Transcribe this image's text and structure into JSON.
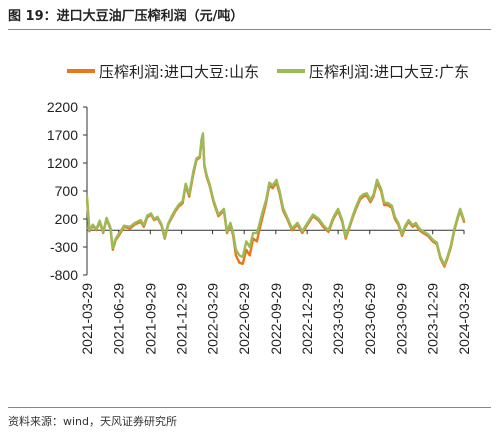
{
  "header": {
    "title": "图 19：进口大豆油厂压榨利润（元/吨）"
  },
  "footer": {
    "source": "资料来源：wind，天风证券研究所"
  },
  "colors": {
    "shandong": "#E8761A",
    "guangdong": "#9BBB59",
    "axis": "#333333",
    "text": "#222222"
  },
  "chart_data": {
    "type": "line",
    "title": "",
    "xlabel": "",
    "ylabel": "",
    "ylim": [
      -800,
      2200
    ],
    "yticks": [
      2200,
      1700,
      1200,
      700,
      200,
      -300,
      -800
    ],
    "xlim": [
      "2021-03-29",
      "2024-03-29"
    ],
    "xticks": [
      "2021-03-29",
      "2021-06-29",
      "2021-09-29",
      "2021-12-29",
      "2022-03-29",
      "2022-06-29",
      "2022-09-29",
      "2022-12-29",
      "2023-03-29",
      "2023-06-29",
      "2023-09-29",
      "2023-12-29",
      "2024-03-29"
    ],
    "legend": "top",
    "grid": false,
    "series": [
      {
        "name": "压榨利润:进口大豆:山东",
        "color": "#E8761A",
        "points": [
          [
            "2021-03-29",
            550
          ],
          [
            "2021-04-05",
            -20
          ],
          [
            "2021-04-15",
            80
          ],
          [
            "2021-04-25",
            0
          ],
          [
            "2021-05-05",
            150
          ],
          [
            "2021-05-15",
            -50
          ],
          [
            "2021-05-25",
            200
          ],
          [
            "2021-06-05",
            30
          ],
          [
            "2021-06-12",
            -350
          ],
          [
            "2021-06-20",
            -180
          ],
          [
            "2021-07-01",
            -80
          ],
          [
            "2021-07-15",
            60
          ],
          [
            "2021-08-01",
            30
          ],
          [
            "2021-08-15",
            100
          ],
          [
            "2021-09-01",
            150
          ],
          [
            "2021-09-10",
            60
          ],
          [
            "2021-09-20",
            230
          ],
          [
            "2021-10-01",
            280
          ],
          [
            "2021-10-10",
            180
          ],
          [
            "2021-10-20",
            220
          ],
          [
            "2021-11-01",
            80
          ],
          [
            "2021-11-10",
            -150
          ],
          [
            "2021-11-20",
            100
          ],
          [
            "2021-12-01",
            230
          ],
          [
            "2021-12-10",
            330
          ],
          [
            "2021-12-20",
            420
          ],
          [
            "2022-01-01",
            480
          ],
          [
            "2022-01-10",
            800
          ],
          [
            "2022-01-20",
            600
          ],
          [
            "2022-02-01",
            1000
          ],
          [
            "2022-02-10",
            1250
          ],
          [
            "2022-02-20",
            1300
          ],
          [
            "2022-02-25",
            1580
          ],
          [
            "2022-03-01",
            1700
          ],
          [
            "2022-03-05",
            1150
          ],
          [
            "2022-03-12",
            950
          ],
          [
            "2022-03-20",
            800
          ],
          [
            "2022-04-01",
            500
          ],
          [
            "2022-04-15",
            250
          ],
          [
            "2022-05-01",
            350
          ],
          [
            "2022-05-10",
            -50
          ],
          [
            "2022-05-20",
            100
          ],
          [
            "2022-05-28",
            -100
          ],
          [
            "2022-06-05",
            -450
          ],
          [
            "2022-06-15",
            -580
          ],
          [
            "2022-06-25",
            -600
          ],
          [
            "2022-07-05",
            -350
          ],
          [
            "2022-07-15",
            -450
          ],
          [
            "2022-07-25",
            -150
          ],
          [
            "2022-08-05",
            -200
          ],
          [
            "2022-08-12",
            0
          ],
          [
            "2022-08-20",
            200
          ],
          [
            "2022-09-01",
            500
          ],
          [
            "2022-09-10",
            800
          ],
          [
            "2022-09-20",
            750
          ],
          [
            "2022-10-01",
            850
          ],
          [
            "2022-10-10",
            650
          ],
          [
            "2022-10-20",
            350
          ],
          [
            "2022-11-01",
            200
          ],
          [
            "2022-11-15",
            0
          ],
          [
            "2022-12-01",
            100
          ],
          [
            "2022-12-15",
            -50
          ],
          [
            "2023-01-01",
            120
          ],
          [
            "2023-01-15",
            250
          ],
          [
            "2023-02-01",
            170
          ],
          [
            "2023-02-15",
            50
          ],
          [
            "2023-03-01",
            -30
          ],
          [
            "2023-03-15",
            200
          ],
          [
            "2023-03-29",
            350
          ],
          [
            "2023-04-10",
            150
          ],
          [
            "2023-04-20",
            -150
          ],
          [
            "2023-05-01",
            50
          ],
          [
            "2023-05-10",
            220
          ],
          [
            "2023-05-20",
            380
          ],
          [
            "2023-06-01",
            550
          ],
          [
            "2023-06-10",
            600
          ],
          [
            "2023-06-20",
            620
          ],
          [
            "2023-07-01",
            500
          ],
          [
            "2023-07-10",
            600
          ],
          [
            "2023-07-20",
            850
          ],
          [
            "2023-08-01",
            700
          ],
          [
            "2023-08-10",
            450
          ],
          [
            "2023-08-20",
            450
          ],
          [
            "2023-09-01",
            400
          ],
          [
            "2023-09-10",
            200
          ],
          [
            "2023-09-20",
            100
          ],
          [
            "2023-10-01",
            -100
          ],
          [
            "2023-10-10",
            50
          ],
          [
            "2023-10-20",
            150
          ],
          [
            "2023-11-01",
            60
          ],
          [
            "2023-11-10",
            100
          ],
          [
            "2023-11-20",
            0
          ],
          [
            "2023-12-01",
            -50
          ],
          [
            "2023-12-15",
            -100
          ],
          [
            "2023-12-29",
            -200
          ],
          [
            "2024-01-10",
            -250
          ],
          [
            "2024-01-20",
            -500
          ],
          [
            "2024-02-01",
            -650
          ],
          [
            "2024-02-10",
            -500
          ],
          [
            "2024-02-20",
            -300
          ],
          [
            "2024-03-01",
            0
          ],
          [
            "2024-03-10",
            200
          ],
          [
            "2024-03-18",
            350
          ],
          [
            "2024-03-29",
            150
          ]
        ]
      },
      {
        "name": "压榨利润:进口大豆:广东",
        "color": "#9BBB59",
        "points": [
          [
            "2021-03-29",
            600
          ],
          [
            "2021-04-05",
            0
          ],
          [
            "2021-04-15",
            100
          ],
          [
            "2021-04-25",
            20
          ],
          [
            "2021-05-05",
            170
          ],
          [
            "2021-05-15",
            -30
          ],
          [
            "2021-05-25",
            220
          ],
          [
            "2021-06-05",
            50
          ],
          [
            "2021-06-12",
            -320
          ],
          [
            "2021-06-20",
            -150
          ],
          [
            "2021-07-01",
            -50
          ],
          [
            "2021-07-15",
            80
          ],
          [
            "2021-08-01",
            60
          ],
          [
            "2021-08-15",
            130
          ],
          [
            "2021-09-01",
            180
          ],
          [
            "2021-09-10",
            90
          ],
          [
            "2021-09-20",
            260
          ],
          [
            "2021-10-01",
            300
          ],
          [
            "2021-10-10",
            200
          ],
          [
            "2021-10-20",
            240
          ],
          [
            "2021-11-01",
            100
          ],
          [
            "2021-11-10",
            -130
          ],
          [
            "2021-11-20",
            120
          ],
          [
            "2021-12-01",
            260
          ],
          [
            "2021-12-10",
            360
          ],
          [
            "2021-12-20",
            450
          ],
          [
            "2022-01-01",
            520
          ],
          [
            "2022-01-10",
            830
          ],
          [
            "2022-01-20",
            640
          ],
          [
            "2022-02-01",
            1050
          ],
          [
            "2022-02-10",
            1280
          ],
          [
            "2022-02-20",
            1320
          ],
          [
            "2022-02-25",
            1620
          ],
          [
            "2022-03-01",
            1730
          ],
          [
            "2022-03-05",
            1180
          ],
          [
            "2022-03-12",
            980
          ],
          [
            "2022-03-20",
            830
          ],
          [
            "2022-04-01",
            530
          ],
          [
            "2022-04-15",
            280
          ],
          [
            "2022-05-01",
            380
          ],
          [
            "2022-05-10",
            -20
          ],
          [
            "2022-05-20",
            130
          ],
          [
            "2022-05-28",
            -50
          ],
          [
            "2022-06-05",
            -350
          ],
          [
            "2022-06-15",
            -450
          ],
          [
            "2022-06-25",
            -480
          ],
          [
            "2022-07-05",
            -200
          ],
          [
            "2022-07-15",
            -300
          ],
          [
            "2022-07-25",
            -50
          ],
          [
            "2022-08-05",
            -50
          ],
          [
            "2022-08-12",
            100
          ],
          [
            "2022-08-20",
            300
          ],
          [
            "2022-09-01",
            550
          ],
          [
            "2022-09-10",
            850
          ],
          [
            "2022-09-20",
            800
          ],
          [
            "2022-10-01",
            900
          ],
          [
            "2022-10-10",
            700
          ],
          [
            "2022-10-20",
            400
          ],
          [
            "2022-11-01",
            230
          ],
          [
            "2022-11-15",
            30
          ],
          [
            "2022-12-01",
            130
          ],
          [
            "2022-12-15",
            -20
          ],
          [
            "2023-01-01",
            150
          ],
          [
            "2023-01-15",
            280
          ],
          [
            "2023-02-01",
            200
          ],
          [
            "2023-02-15",
            80
          ],
          [
            "2023-03-01",
            0
          ],
          [
            "2023-03-15",
            230
          ],
          [
            "2023-03-29",
            380
          ],
          [
            "2023-04-10",
            180
          ],
          [
            "2023-04-20",
            -120
          ],
          [
            "2023-05-01",
            80
          ],
          [
            "2023-05-10",
            250
          ],
          [
            "2023-05-20",
            420
          ],
          [
            "2023-06-01",
            590
          ],
          [
            "2023-06-10",
            640
          ],
          [
            "2023-06-20",
            660
          ],
          [
            "2023-07-01",
            540
          ],
          [
            "2023-07-10",
            640
          ],
          [
            "2023-07-20",
            900
          ],
          [
            "2023-08-01",
            740
          ],
          [
            "2023-08-10",
            490
          ],
          [
            "2023-08-20",
            490
          ],
          [
            "2023-09-01",
            440
          ],
          [
            "2023-09-10",
            240
          ],
          [
            "2023-09-20",
            130
          ],
          [
            "2023-10-01",
            -70
          ],
          [
            "2023-10-10",
            80
          ],
          [
            "2023-10-20",
            180
          ],
          [
            "2023-11-01",
            90
          ],
          [
            "2023-11-10",
            130
          ],
          [
            "2023-11-20",
            30
          ],
          [
            "2023-12-01",
            -20
          ],
          [
            "2023-12-15",
            -70
          ],
          [
            "2023-12-29",
            -170
          ],
          [
            "2024-01-10",
            -220
          ],
          [
            "2024-01-20",
            -470
          ],
          [
            "2024-02-01",
            -620
          ],
          [
            "2024-02-10",
            -470
          ],
          [
            "2024-02-20",
            -270
          ],
          [
            "2024-03-01",
            30
          ],
          [
            "2024-03-10",
            230
          ],
          [
            "2024-03-18",
            380
          ],
          [
            "2024-03-29",
            180
          ]
        ]
      }
    ]
  }
}
